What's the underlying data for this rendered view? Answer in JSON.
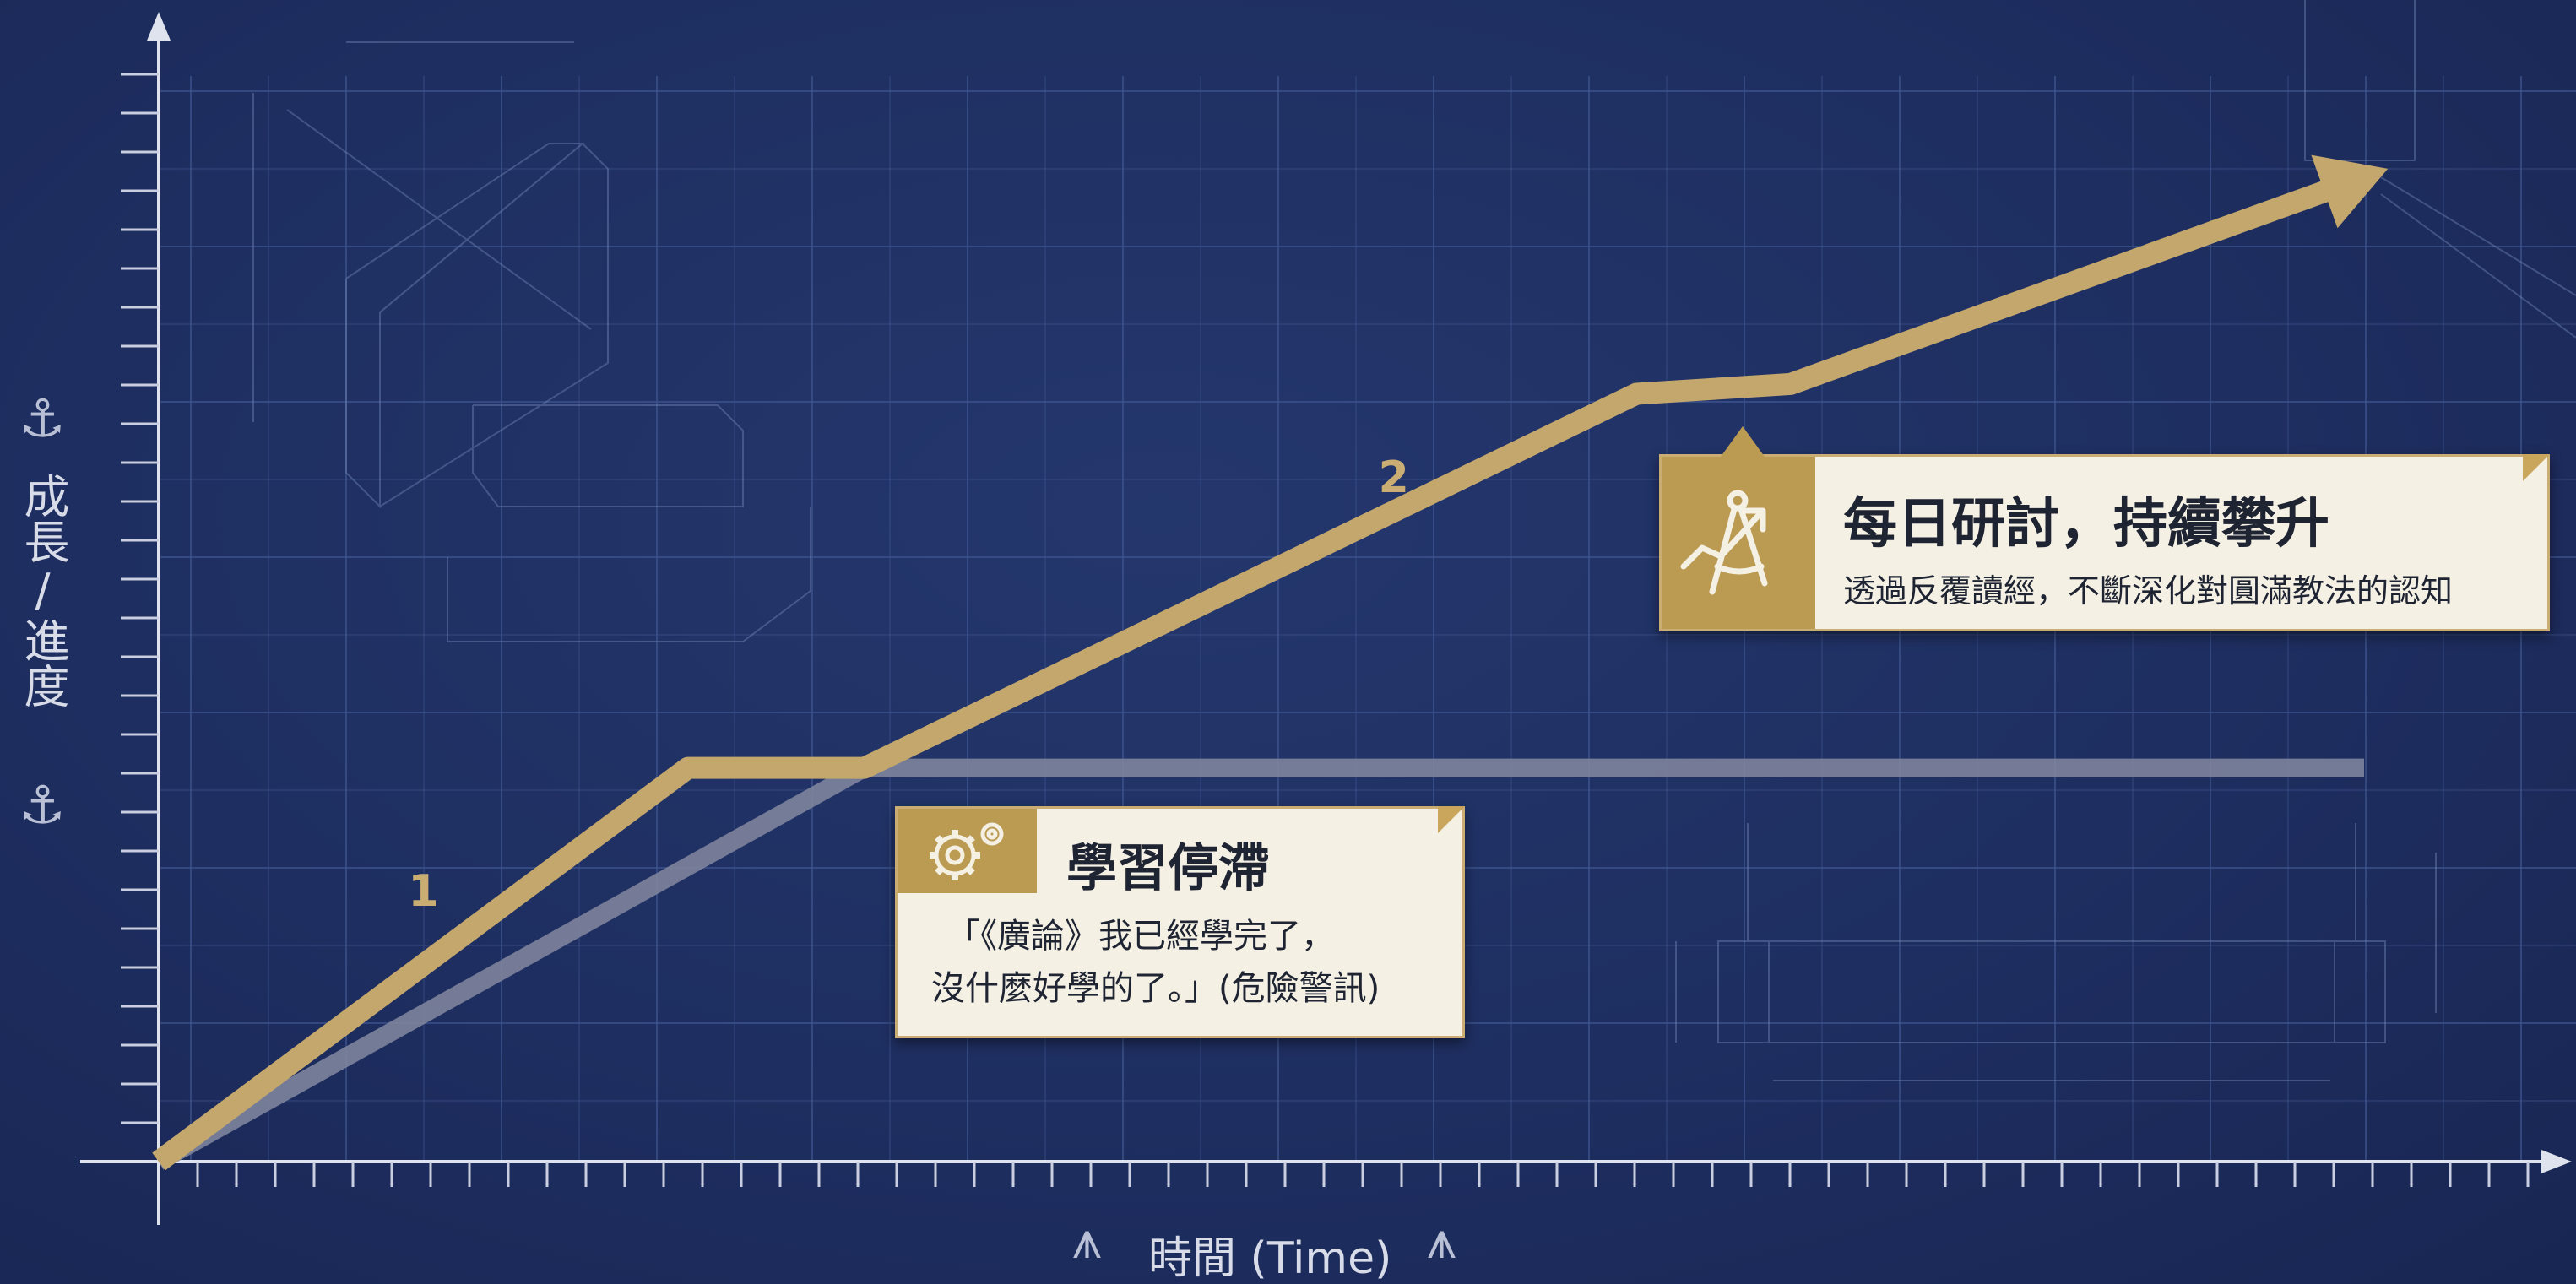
{
  "chart_data": {
    "type": "line",
    "xlabel": "時間 (Time)",
    "ylabel": "成長/進度",
    "xlim": [
      0,
      100
    ],
    "ylim": [
      0,
      100
    ],
    "grid": true,
    "series": [
      {
        "name": "1",
        "color": "#c4a76c",
        "x": [
          0,
          24,
          32,
          67,
          74,
          100
        ],
        "y": [
          0,
          40,
          40,
          78,
          79,
          100
        ]
      },
      {
        "name": "",
        "color": "#7e849c",
        "x": [
          0,
          32,
          100
        ],
        "y": [
          0,
          40,
          40
        ]
      }
    ],
    "series_labels": [
      {
        "text": "1",
        "x": 12,
        "y": 26
      },
      {
        "text": "2",
        "x": 56,
        "y": 68
      }
    ],
    "annotations": [
      {
        "id": "stagnation",
        "title": "學習停滯",
        "lines": [
          "「《廣論》我已經學完了，",
          "沒什麼好學的了。」(危險警訊)"
        ],
        "icon": "gear-icon"
      },
      {
        "id": "daily",
        "title": "每日研討，持續攀升",
        "lines": [
          "透過反覆讀經，不斷深化對圓滿教法的認知"
        ],
        "icon": "compass-growth-icon"
      }
    ]
  },
  "decor": {
    "axis_icon": "anchor-icon",
    "xaxis_icon": "compass-icon",
    "accent": "#c4a76c",
    "background": "#1e2e60"
  }
}
